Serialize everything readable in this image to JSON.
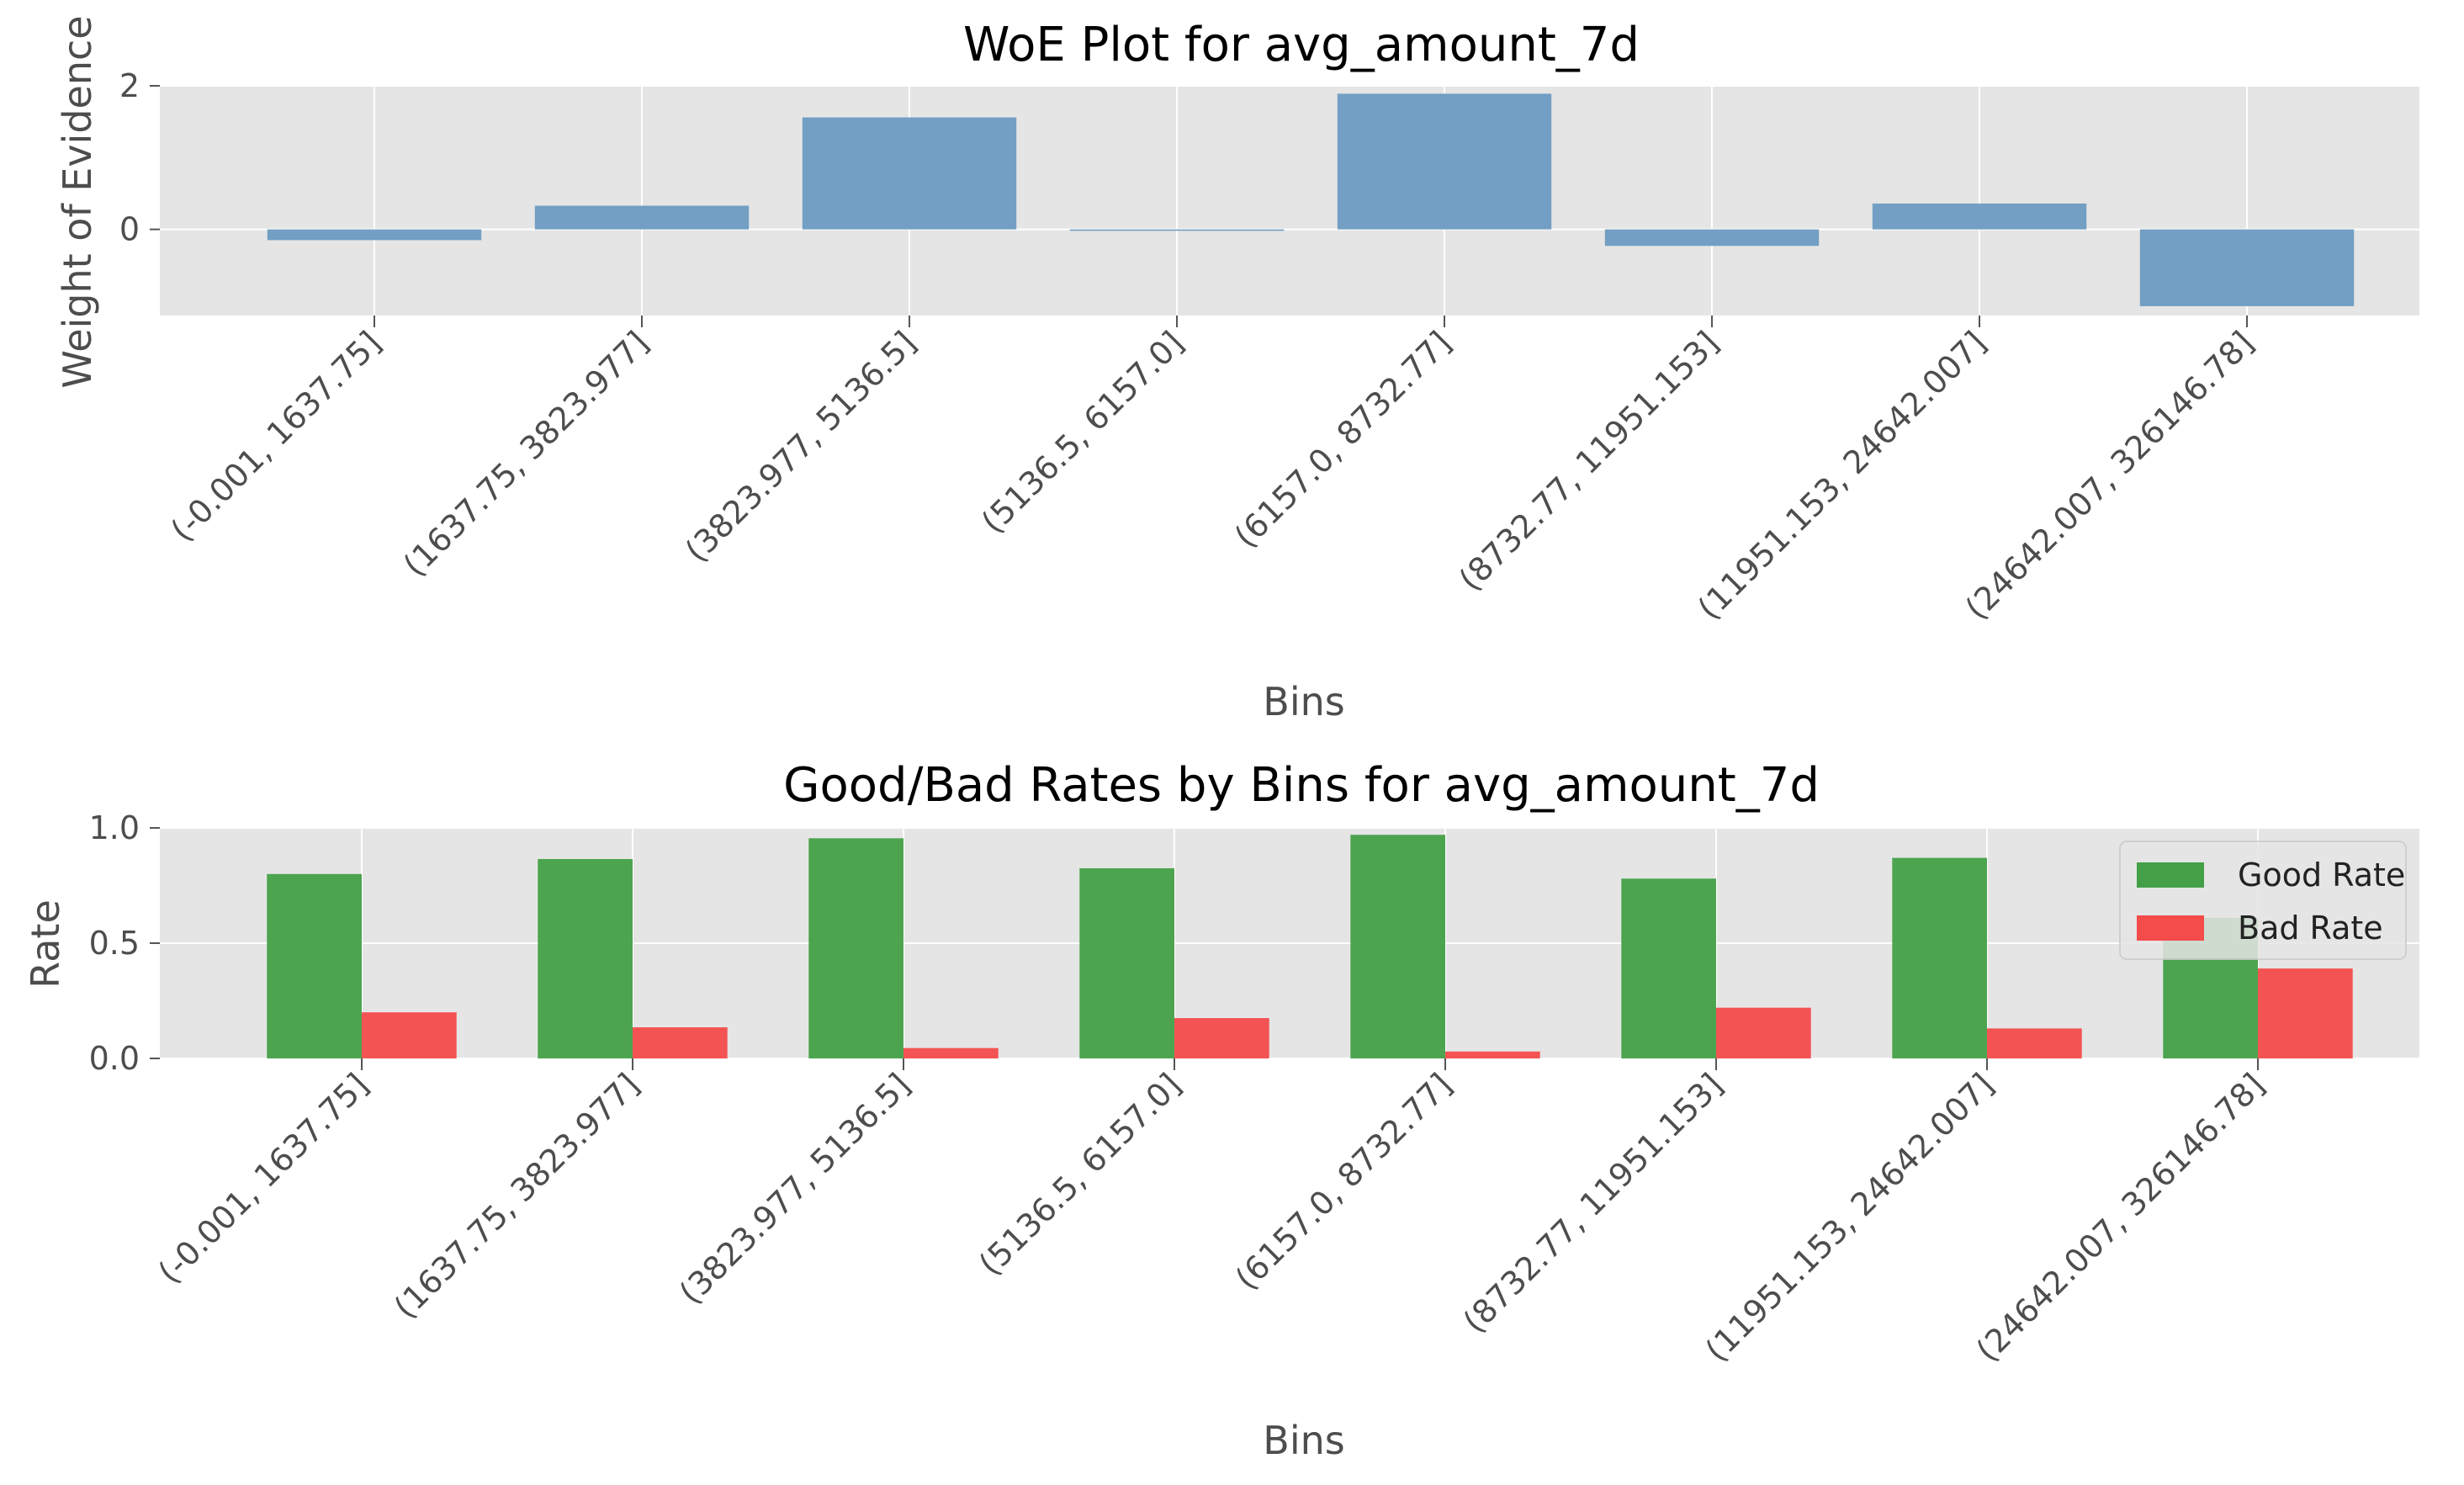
{
  "chart_data": [
    {
      "type": "bar",
      "title": "WoE Plot for avg_amount_7d",
      "xlabel": "Bins",
      "ylabel": "Weight of Evidence",
      "categories": [
        "(-0.001, 1637.75]",
        "(1637.75, 3823.977]",
        "(3823.977, 5136.5]",
        "(5136.5, 6157.0]",
        "(6157.0, 8732.77]",
        "(8732.77, 11951.153]",
        "(11951.153, 24642.007]",
        "(24642.007, 326146.78]"
      ],
      "series": [
        {
          "values": [
            -0.15,
            0.33,
            1.56,
            -0.02,
            1.89,
            -0.23,
            0.36,
            -1.07
          ],
          "color": "#729fc3"
        }
      ],
      "ylim": [
        -1.2,
        2.0
      ],
      "yticks": [
        0,
        2
      ],
      "grid": true,
      "background": "#e5e5e5"
    },
    {
      "type": "bar",
      "title": "Good/Bad Rates by Bins for avg_amount_7d",
      "xlabel": "Bins",
      "ylabel": "Rate",
      "categories": [
        "(-0.001, 1637.75]",
        "(1637.75, 3823.977]",
        "(3823.977, 5136.5]",
        "(5136.5, 6157.0]",
        "(6157.0, 8732.77]",
        "(8732.77, 11951.153]",
        "(11951.153, 24642.007]",
        "(24642.007, 326146.78]"
      ],
      "series": [
        {
          "name": "Good Rate",
          "values": [
            0.8,
            0.865,
            0.955,
            0.825,
            0.97,
            0.78,
            0.87,
            0.61
          ],
          "color": "#43a047"
        },
        {
          "name": "Bad Rate",
          "values": [
            0.2,
            0.135,
            0.045,
            0.175,
            0.03,
            0.22,
            0.13,
            0.39
          ],
          "color": "#f44b4b"
        }
      ],
      "ylim": [
        0,
        1.0
      ],
      "yticks": [
        0.0,
        0.5,
        1.0
      ],
      "legend": "upper-right",
      "grid": true,
      "background": "#e5e5e5"
    }
  ]
}
